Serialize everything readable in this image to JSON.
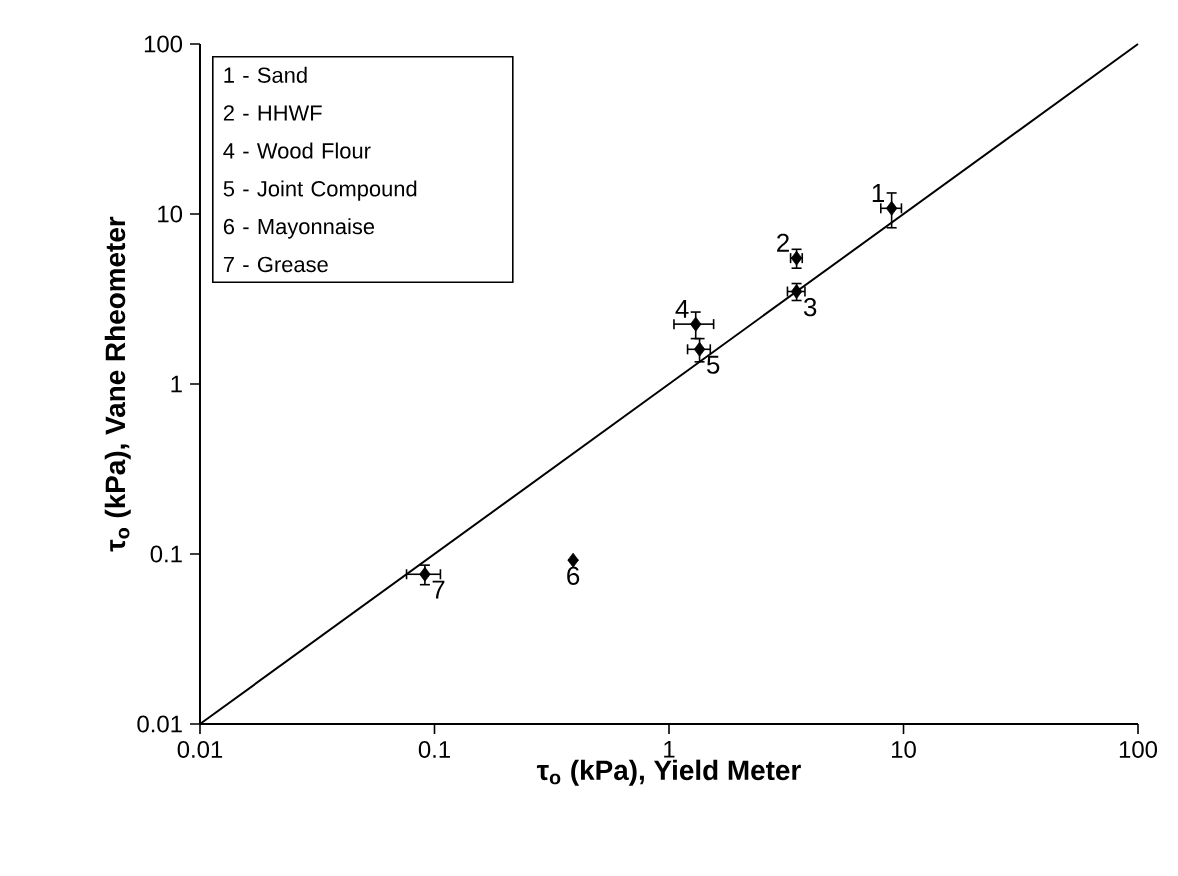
{
  "chart_data": {
    "type": "scatter",
    "xlabel": "τ$_{o}$ (kPa), Yield Meter",
    "ylabel": "τ$_{o}$ (kPa), Vane Rheometer",
    "log": "xy",
    "xlim": [
      0.01,
      100
    ],
    "ylim": [
      0.01,
      100
    ],
    "xticks": [
      0.01,
      0.1,
      1,
      10,
      100
    ],
    "yticks": [
      0.01,
      0.1,
      1,
      10,
      100
    ],
    "marker": "diamond",
    "grid": false,
    "series": [
      {
        "color": "#000000",
        "x": [
          8.9,
          3.5,
          3.5,
          1.3,
          1.35,
          0.39,
          0.091
        ],
        "values": [
          10.8,
          5.5,
          3.5,
          2.25,
          1.6,
          0.092,
          0.076
        ],
        "errors": [
          2.5,
          0.7,
          0.4,
          0.4,
          0.25,
          null,
          0.01
        ],
        "xerrors": [
          0.9,
          0.2,
          0.3,
          0.25,
          0.15,
          null,
          0.015
        ]
      },
      {
        "type": "line",
        "color": "#000000",
        "x": [
          0.01,
          100
        ],
        "values": [
          0.01,
          100
        ],
        "marker": "none"
      }
    ],
    "annotations": [
      "1 - Sand",
      "2 - HHWF",
      "4 - Wood Flour",
      "5 - Joint Compound",
      "6 - Mayonnaise",
      "7 - Grease",
      {
        "text": "1",
        "x": 8.9,
        "y": 10.8
      },
      {
        "text": "2",
        "x": 3.5,
        "y": 5.5
      },
      {
        "text": "3",
        "x": 3.5,
        "y": 3.5
      },
      {
        "text": "4",
        "x": 1.3,
        "y": 2.25
      },
      {
        "text": "5",
        "x": 1.35,
        "y": 1.6
      },
      {
        "text": "6",
        "x": 0.39,
        "y": 0.092
      },
      {
        "text": "7",
        "x": 0.091,
        "y": 0.076
      }
    ]
  }
}
